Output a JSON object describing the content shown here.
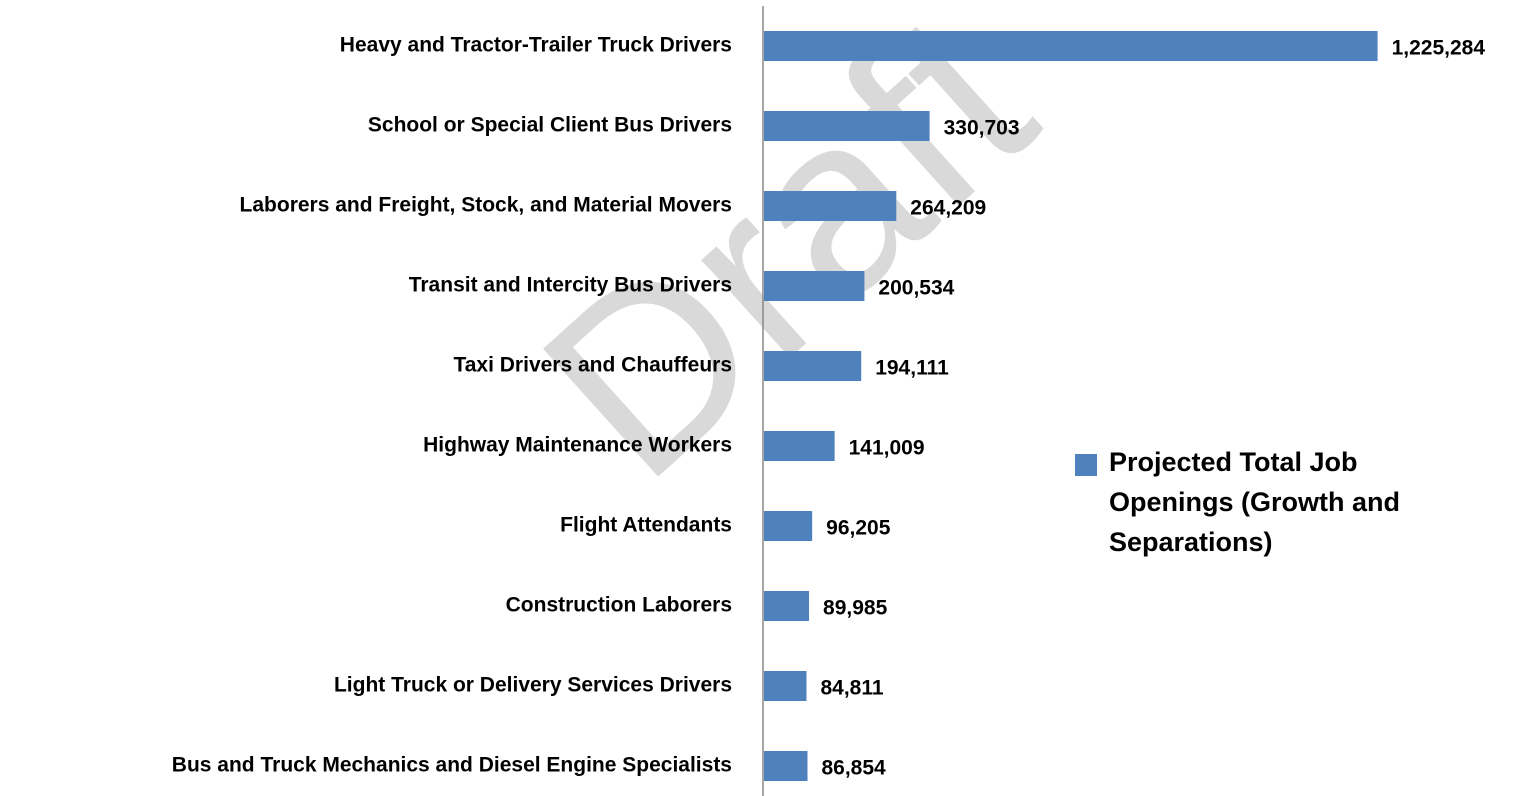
{
  "chart_data": {
    "type": "bar",
    "orientation": "horizontal",
    "watermark": "Draft",
    "categories": [
      "Heavy and Tractor-Trailer Truck Drivers",
      "School or Special Client Bus Drivers",
      "Laborers and Freight, Stock, and Material Movers",
      "Transit and Intercity Bus Drivers",
      "Taxi Drivers and Chauffeurs",
      "Highway Maintenance Workers",
      "Flight Attendants",
      "Construction Laborers",
      "Light Truck or Delivery Services Drivers",
      "Bus and Truck Mechanics and Diesel Engine Specialists"
    ],
    "series": [
      {
        "name": "Projected Total Job Openings (Growth and Separations)",
        "color": "#4f81bd",
        "values": [
          1225284,
          330703,
          264209,
          200534,
          194111,
          141009,
          96205,
          89985,
          84811,
          86854
        ],
        "value_labels": [
          "1,225,284",
          "330,703",
          "264,209",
          "200,534",
          "194,111",
          "141,009",
          "96,205",
          "89,985",
          "84,811",
          "86,854"
        ]
      }
    ],
    "xlim": [
      0,
      1300000
    ],
    "legend": "right"
  }
}
